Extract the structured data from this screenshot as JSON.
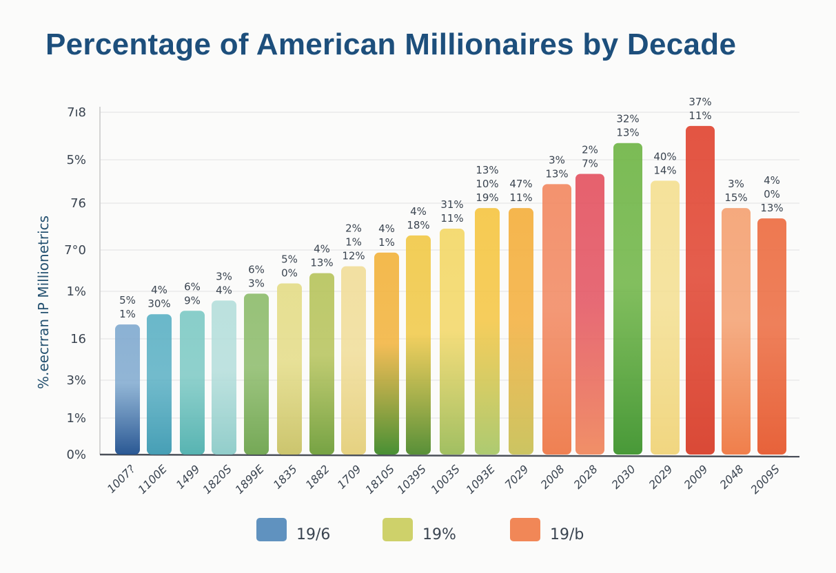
{
  "chart_data": {
    "type": "bar",
    "title": "Percentage of American Millionaires by Decade",
    "ylabel": "%.eecrran ıP Millionetrics",
    "xlabel": "",
    "ylim": [
      0,
      100
    ],
    "y_ticks": [
      "0%",
      "1%",
      "3%",
      "16",
      "1%",
      "7°0",
      "76",
      "5%",
      "7ı8"
    ],
    "grid": true,
    "legend_position": "bottom",
    "legend": [
      {
        "label": "19/6",
        "color": "#4f86b8"
      },
      {
        "label": "19%",
        "color": "#c9cc5a"
      },
      {
        "label": "19/b",
        "color": "#f07a45"
      }
    ],
    "categories": [
      "1007?",
      "1100E",
      "1499",
      "1820S",
      "1899E",
      "1835",
      "1882",
      "1709",
      "1810S",
      "1039S",
      "1003S",
      "1093E",
      "7029",
      "2008",
      "2028",
      "2030",
      "2029",
      "2009",
      "2048",
      "2009S"
    ],
    "values": [
      38,
      41,
      42,
      45,
      47,
      50,
      53,
      55,
      59,
      64,
      66,
      72,
      72,
      79,
      82,
      91,
      80,
      96,
      72,
      69
    ],
    "data_labels": [
      [
        "5%",
        "1%"
      ],
      [
        "4%",
        "30%"
      ],
      [
        "6%",
        "9%"
      ],
      [
        "3%",
        "4%"
      ],
      [
        "6%",
        "3%"
      ],
      [
        "5%",
        "0%"
      ],
      [
        "4%",
        "13%"
      ],
      [
        "2%",
        "1%",
        "12%"
      ],
      [
        "4%",
        "1%"
      ],
      [
        "4%",
        "18%"
      ],
      [
        "31%",
        "11%"
      ],
      [
        "13%",
        "10%",
        "19%"
      ],
      [
        "47%",
        "11%"
      ],
      [
        "3%",
        "13%"
      ],
      [
        "2%",
        "7%"
      ],
      [
        "32%",
        "13%"
      ],
      [
        "40%",
        "14%"
      ],
      [
        "37%",
        "11%"
      ],
      [
        "3%",
        "15%"
      ],
      [
        "4%",
        "0%",
        "13%"
      ]
    ],
    "bar_colors": [
      [
        "#7fa9cf",
        "#1f4f8e"
      ],
      [
        "#5ab0c4",
        "#3d9ab2"
      ],
      [
        "#7cc9c4",
        "#4fb0ae"
      ],
      [
        "#b4dedb",
        "#8ccbc8"
      ],
      [
        "#8cbb6a",
        "#6ea44e"
      ],
      [
        "#e4dc86",
        "#c9c266"
      ],
      [
        "#b6c35a",
        "#6f9e3a"
      ],
      [
        "#f1dd98",
        "#e4cf7a"
      ],
      [
        "#f2b23a",
        "#3f8a2a"
      ],
      [
        "#f1c845",
        "#4f8a2e"
      ],
      [
        "#f3d765",
        "#9cbc5a"
      ],
      [
        "#f5c540",
        "#a9c86a"
      ],
      [
        "#f4ae3a",
        "#c9c25a"
      ],
      [
        "#f2875f",
        "#ee7a4a"
      ],
      [
        "#e3505e",
        "#f08a60"
      ],
      [
        "#6db443",
        "#3f942e"
      ],
      [
        "#f4df90",
        "#f0d47a"
      ],
      [
        "#e0422e",
        "#d8402c"
      ],
      [
        "#f4a070",
        "#ef7842"
      ],
      [
        "#ec6a3e",
        "#e65a30"
      ]
    ]
  }
}
